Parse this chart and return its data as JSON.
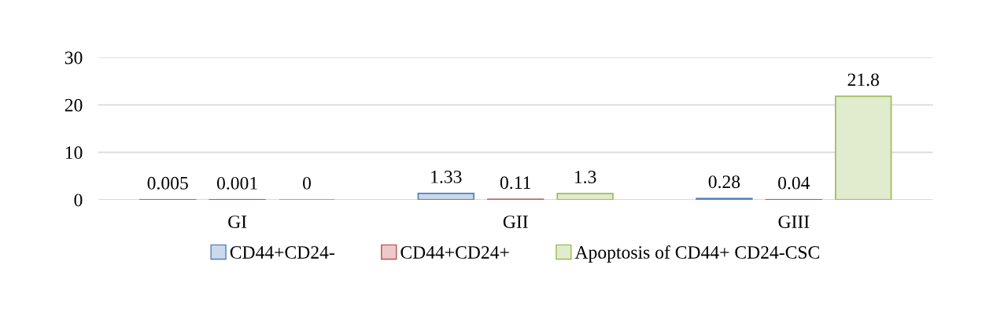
{
  "chart_data": {
    "type": "bar",
    "categories": [
      "GI",
      "GII",
      "GIII"
    ],
    "series": [
      {
        "name": "CD44+CD24-",
        "color": "#4f81bd",
        "values": [
          0.005,
          1.33,
          0.28
        ]
      },
      {
        "name": "CD44+CD24+",
        "color": "#c0504d",
        "values": [
          0.001,
          0.11,
          0.04
        ]
      },
      {
        "name": "Apoptosis of CD44+ CD24-CSC",
        "color": "#9bbb59",
        "values": [
          0,
          1.3,
          21.8
        ]
      }
    ],
    "ylim": [
      0,
      30
    ],
    "yticks": [
      0,
      10,
      20,
      30
    ],
    "grid": "y",
    "legend": "bottom",
    "data_labels": true
  }
}
